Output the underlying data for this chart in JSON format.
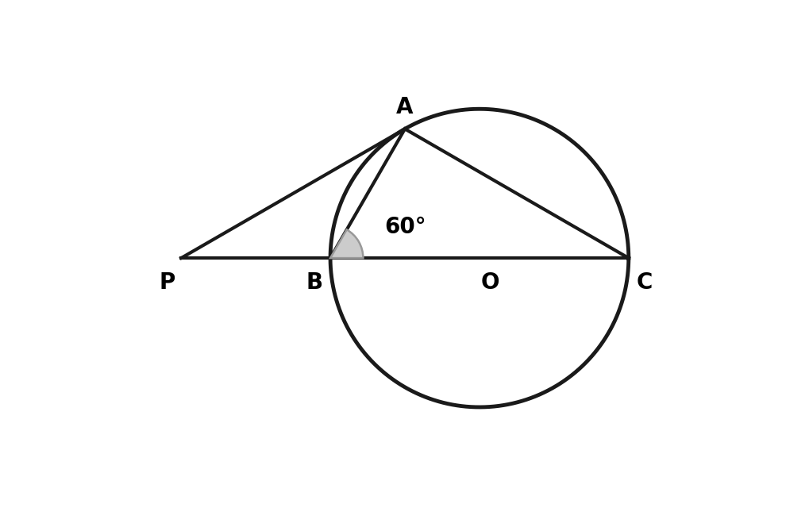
{
  "background_color": "#ffffff",
  "line_color": "#1a1a1a",
  "line_width": 3.0,
  "circle_lw": 3.5,
  "angle_arc_color": "#999999",
  "angle_fill_color": "#cccccc",
  "label_A": "A",
  "label_B": "B",
  "label_O": "O",
  "label_C": "C",
  "label_P": "P",
  "label_angle": "60°",
  "font_size": 20,
  "font_weight": "bold",
  "xlim": [
    -3.2,
    2.2
  ],
  "ylim": [
    -1.6,
    1.5
  ]
}
